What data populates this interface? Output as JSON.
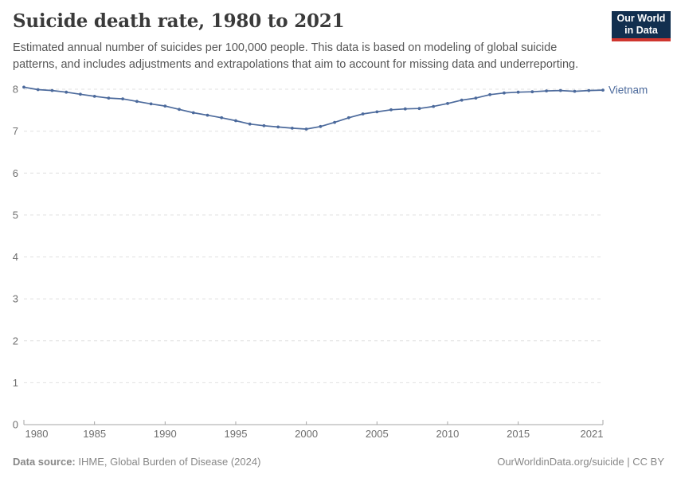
{
  "header": {
    "title": "Suicide death rate, 1980 to 2021",
    "subtitle": "Estimated annual number of suicides per 100,000 people. This data is based on modeling of global suicide patterns, and includes adjustments and extrapolations that aim to account for missing data and underreporting.",
    "logo": {
      "line1": "Our World",
      "line2": "in Data"
    }
  },
  "colors": {
    "line": "#4c6a9c",
    "series_label": "#4c6a9c",
    "gridline": "#e0e0e0",
    "axis": "#a5a5a5",
    "tick_text": "#6f6f6f",
    "logo_navy": "#122f4f",
    "logo_red": "#cf352e"
  },
  "chart_data": {
    "type": "line",
    "title": "Suicide death rate, 1980 to 2021",
    "unit": "Estimated annual number of suicides per 100,000 people",
    "xlabel": "",
    "ylabel": "",
    "ylim": [
      0,
      8
    ],
    "yticks": [
      0,
      1,
      2,
      3,
      4,
      5,
      6,
      7,
      8
    ],
    "xticks": [
      1980,
      1985,
      1990,
      1995,
      2000,
      2005,
      2010,
      2015,
      2021
    ],
    "grid": "horizontal-dashed",
    "legend_position": "end-of-line-label",
    "series": [
      {
        "name": "Vietnam",
        "x": [
          1980,
          1981,
          1982,
          1983,
          1984,
          1985,
          1986,
          1987,
          1988,
          1989,
          1990,
          1991,
          1992,
          1993,
          1994,
          1995,
          1996,
          1997,
          1998,
          1999,
          2000,
          2001,
          2002,
          2003,
          2004,
          2005,
          2006,
          2007,
          2008,
          2009,
          2010,
          2011,
          2012,
          2013,
          2014,
          2015,
          2016,
          2017,
          2018,
          2019,
          2020,
          2021
        ],
        "values": [
          8.05,
          7.99,
          7.97,
          7.93,
          7.88,
          7.83,
          7.79,
          7.77,
          7.71,
          7.65,
          7.6,
          7.52,
          7.44,
          7.38,
          7.32,
          7.25,
          7.17,
          7.13,
          7.1,
          7.07,
          7.05,
          7.11,
          7.21,
          7.32,
          7.41,
          7.46,
          7.51,
          7.53,
          7.54,
          7.59,
          7.66,
          7.74,
          7.79,
          7.87,
          7.91,
          7.93,
          7.94,
          7.96,
          7.97,
          7.95,
          7.97,
          7.98
        ]
      }
    ]
  },
  "footer": {
    "source_label": "Data source:",
    "source_text": " IHME, Global Burden of Disease (2024)",
    "right_text": "OurWorldinData.org/suicide | CC BY"
  }
}
